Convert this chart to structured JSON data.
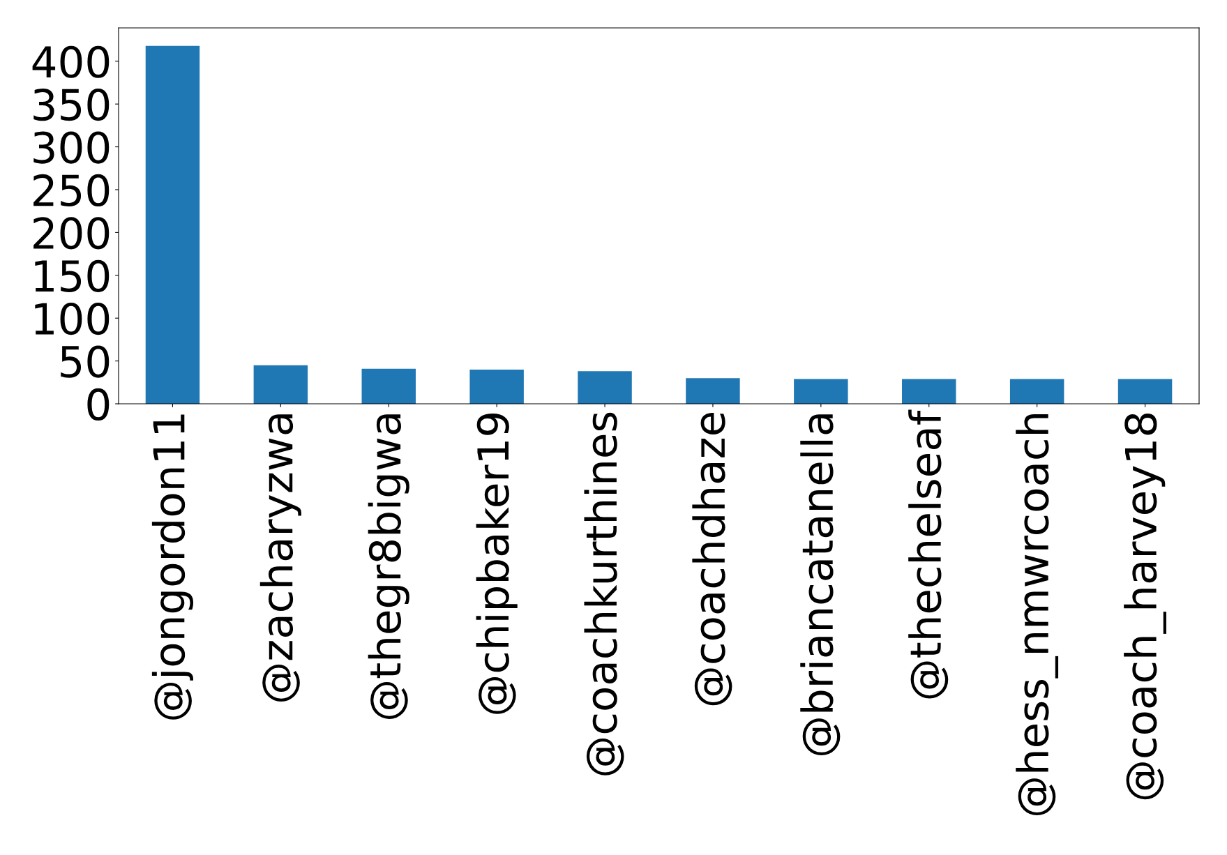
{
  "chart_data": {
    "type": "bar",
    "categories": [
      "@jongordon11",
      "@zacharyzwa",
      "@thegr8bigwa",
      "@chipbaker19",
      "@coachkurthines",
      "@coachdhaze",
      "@briancatanella",
      "@thechelseaf",
      "@hess_nmwrcoach",
      "@coach_harvey18"
    ],
    "values": [
      418,
      45,
      41,
      40,
      38,
      30,
      29,
      29,
      29,
      29
    ],
    "color": "#1f77b4",
    "ylim": [
      0,
      438.9
    ],
    "yticks": [
      0,
      50,
      100,
      150,
      200,
      250,
      300,
      350,
      400
    ],
    "grid": false,
    "legend": false
  }
}
